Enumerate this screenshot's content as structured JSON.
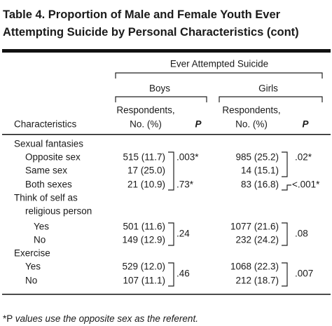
{
  "header": {
    "title_lines": [
      "Table 4. Proportion of Male and Female Youth Ever",
      "Attempting Suicide by Personal Characteristics (cont)"
    ]
  },
  "table": {
    "group_header": "Ever Attempted Suicide",
    "boys": "Boys",
    "girls": "Girls",
    "characteristics": "Characteristics",
    "respondents_line1": "Respondents,",
    "respondents_line2": "No. (%)",
    "p": "P",
    "rows": [
      {
        "label": "Sexual fantasies"
      },
      {
        "label": "Opposite sex",
        "boys": "515 (11.7)",
        "girls": "985 (25.2)"
      },
      {
        "label": "Same sex",
        "boys": "17 (25.0)",
        "girls": "14 (15.1)"
      },
      {
        "label": "Both sexes",
        "boys": "21 (10.9)",
        "girls": "83 (16.8)"
      },
      {
        "label": "Think of self as"
      },
      {
        "label": "religious person"
      },
      {
        "label": "Yes",
        "boys": "501 (11.6)",
        "girls": "1077 (21.6)"
      },
      {
        "label": "No",
        "boys": "149 (12.9)",
        "girls": "232 (24.2)"
      },
      {
        "label": "Exercise"
      },
      {
        "label": "Yes",
        "boys": "529 (12.0)",
        "girls": "1068 (22.3)"
      },
      {
        "label": "No",
        "boys": "107 (11.1)",
        "girls": "212 (18.7)"
      }
    ],
    "p_values": {
      "boys": [
        ".003*",
        ".73*",
        ".24",
        ".46"
      ],
      "girls": [
        ".02*",
        "<.001*",
        ".08",
        ".007"
      ]
    }
  },
  "footnote": {
    "mark": "*P",
    "text": "values use the opposite sex as the referent."
  }
}
